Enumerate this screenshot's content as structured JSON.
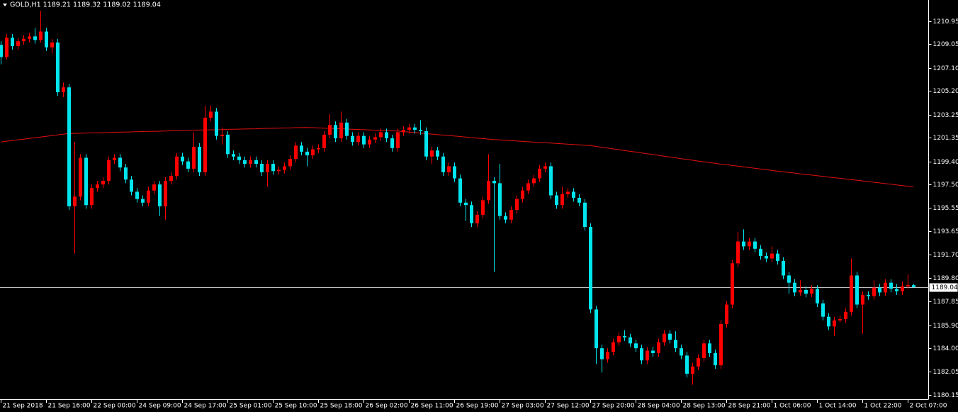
{
  "chart_data": {
    "type": "candlestick",
    "title": "GOLD,H1  1189.21 1189.32 1189.02 1189.04",
    "up_color": "#ff0000",
    "down_color": "#00e5ee",
    "ma_color": "#e01010",
    "last_price": 1189.04,
    "last_price_color": "#c0c0c0",
    "ylim": [
      1179.8,
      1212.7
    ],
    "yticks": [
      {
        "value": 1180.15,
        "label": "1180.15"
      },
      1182.05,
      {
        "value": 1184.0,
        "label": "1184.00"
      },
      {
        "value": 1185.9,
        "label": "1185.90"
      },
      1187.85,
      {
        "value": 1189.8,
        "label": "1189.80"
      },
      {
        "value": 1191.7,
        "label": "1191.70"
      },
      1193.65,
      1195.55,
      {
        "value": 1197.5,
        "label": "1197.50"
      },
      {
        "value": 1199.4,
        "label": "1199.40"
      },
      1201.35,
      1203.25,
      {
        "value": 1205.2,
        "label": "1205.20"
      },
      {
        "value": 1207.1,
        "label": "1207.10"
      },
      1209.05,
      1210.95
    ],
    "xticks": [
      "21 Sep 2018",
      "21 Sep 16:00",
      "22 Sep 00:00",
      "24 Sep 09:00",
      "24 Sep 17:00",
      "25 Sep 01:00",
      "25 Sep 10:00",
      "25 Sep 18:00",
      "26 Sep 02:00",
      "26 Sep 11:00",
      "26 Sep 19:00",
      "27 Sep 03:00",
      "27 Sep 12:00",
      "27 Sep 20:00",
      "28 Sep 04:00",
      "28 Sep 13:00",
      "28 Sep 21:00",
      "1 Oct 06:00",
      "1 Oct 14:00",
      "1 Oct 22:00",
      "2 Oct 07:00"
    ],
    "ohlc": [
      [
        1209.0,
        1209.3,
        1207.4,
        1208.0
      ],
      [
        1208.0,
        1209.9,
        1207.8,
        1209.6
      ],
      [
        1209.6,
        1209.9,
        1208.6,
        1208.9
      ],
      [
        1208.9,
        1209.6,
        1208.6,
        1209.3
      ],
      [
        1209.3,
        1209.8,
        1209.0,
        1209.5
      ],
      [
        1209.5,
        1210.0,
        1209.2,
        1209.7
      ],
      [
        1209.7,
        1210.4,
        1209.1,
        1209.4
      ],
      [
        1209.4,
        1211.8,
        1209.2,
        1210.1
      ],
      [
        1210.1,
        1210.4,
        1208.5,
        1208.8
      ],
      [
        1208.8,
        1209.5,
        1208.3,
        1209.2
      ],
      [
        1209.2,
        1209.5,
        1204.8,
        1205.1
      ],
      [
        1205.1,
        1205.9,
        1204.7,
        1205.5
      ],
      [
        1205.5,
        1205.8,
        1195.4,
        1195.7
      ],
      [
        1195.7,
        1201.0,
        1191.8,
        1196.5
      ],
      [
        1196.5,
        1200.0,
        1196.2,
        1199.7
      ],
      [
        1199.7,
        1200.0,
        1195.5,
        1195.8
      ],
      [
        1195.8,
        1197.5,
        1195.5,
        1197.2
      ],
      [
        1197.2,
        1197.8,
        1196.9,
        1197.5
      ],
      [
        1197.5,
        1198.1,
        1197.2,
        1197.8
      ],
      [
        1197.8,
        1199.8,
        1197.5,
        1199.5
      ],
      [
        1199.5,
        1200.0,
        1199.2,
        1199.7
      ],
      [
        1199.7,
        1200.0,
        1198.6,
        1198.9
      ],
      [
        1198.9,
        1199.2,
        1197.6,
        1197.9
      ],
      [
        1197.9,
        1198.2,
        1196.6,
        1196.9
      ],
      [
        1196.9,
        1197.2,
        1196.0,
        1196.3
      ],
      [
        1196.3,
        1196.6,
        1195.7,
        1196.0
      ],
      [
        1196.0,
        1197.3,
        1195.7,
        1197.0
      ],
      [
        1197.0,
        1197.8,
        1196.7,
        1197.5
      ],
      [
        1197.5,
        1197.8,
        1194.9,
        1195.7
      ],
      [
        1195.7,
        1198.1,
        1194.6,
        1197.8
      ],
      [
        1197.8,
        1198.5,
        1197.5,
        1198.2
      ],
      [
        1198.2,
        1200.1,
        1197.9,
        1199.8
      ],
      [
        1199.8,
        1200.1,
        1199.1,
        1199.4
      ],
      [
        1199.4,
        1199.7,
        1198.5,
        1198.8
      ],
      [
        1198.8,
        1201.8,
        1198.5,
        1200.6
      ],
      [
        1200.6,
        1200.9,
        1198.2,
        1198.5
      ],
      [
        1198.5,
        1204.0,
        1198.2,
        1203.0
      ],
      [
        1203.0,
        1204.0,
        1202.7,
        1203.5
      ],
      [
        1203.5,
        1203.8,
        1201.2,
        1201.5
      ],
      [
        1201.5,
        1202.2,
        1200.8,
        1201.6
      ],
      [
        1201.6,
        1201.9,
        1199.7,
        1200.0
      ],
      [
        1200.0,
        1200.3,
        1199.5,
        1199.8
      ],
      [
        1199.8,
        1200.1,
        1199.2,
        1199.5
      ],
      [
        1199.5,
        1199.8,
        1198.9,
        1199.2
      ],
      [
        1199.2,
        1199.8,
        1198.9,
        1199.5
      ],
      [
        1199.5,
        1199.8,
        1198.9,
        1199.2
      ],
      [
        1199.2,
        1199.5,
        1198.2,
        1198.5
      ],
      [
        1198.5,
        1199.5,
        1197.3,
        1199.2
      ],
      [
        1199.2,
        1199.5,
        1198.3,
        1198.6
      ],
      [
        1198.6,
        1199.0,
        1198.3,
        1198.7
      ],
      [
        1198.7,
        1199.3,
        1198.4,
        1199.0
      ],
      [
        1199.0,
        1199.9,
        1198.7,
        1199.6
      ],
      [
        1199.6,
        1201.0,
        1199.3,
        1200.7
      ],
      [
        1200.7,
        1201.0,
        1199.9,
        1200.2
      ],
      [
        1200.2,
        1200.5,
        1199.0,
        1199.9
      ],
      [
        1199.9,
        1200.7,
        1199.6,
        1200.4
      ],
      [
        1200.4,
        1200.8,
        1200.1,
        1200.5
      ],
      [
        1200.5,
        1201.9,
        1200.2,
        1201.6
      ],
      [
        1201.6,
        1203.3,
        1201.3,
        1202.4
      ],
      [
        1202.4,
        1202.7,
        1201.0,
        1201.3
      ],
      [
        1201.3,
        1203.5,
        1201.0,
        1202.6
      ],
      [
        1202.6,
        1202.9,
        1201.2,
        1201.5
      ],
      [
        1201.5,
        1201.8,
        1200.7,
        1201.0
      ],
      [
        1201.0,
        1201.8,
        1200.7,
        1201.5
      ],
      [
        1201.5,
        1201.8,
        1200.5,
        1200.8
      ],
      [
        1200.8,
        1201.5,
        1200.5,
        1201.2
      ],
      [
        1201.2,
        1201.7,
        1200.9,
        1201.4
      ],
      [
        1201.4,
        1202.1,
        1201.1,
        1201.8
      ],
      [
        1201.8,
        1202.1,
        1201.0,
        1201.3
      ],
      [
        1201.3,
        1201.6,
        1200.2,
        1200.5
      ],
      [
        1200.5,
        1202.1,
        1200.2,
        1201.8
      ],
      [
        1201.8,
        1202.3,
        1201.5,
        1202.0
      ],
      [
        1202.0,
        1202.5,
        1201.7,
        1202.2
      ],
      [
        1202.2,
        1202.5,
        1201.7,
        1202.0
      ],
      [
        1202.0,
        1202.8,
        1201.6,
        1201.9
      ],
      [
        1201.9,
        1202.2,
        1199.5,
        1199.8
      ],
      [
        1199.8,
        1200.6,
        1199.2,
        1200.3
      ],
      [
        1200.3,
        1200.6,
        1199.5,
        1199.8
      ],
      [
        1199.8,
        1200.1,
        1198.2,
        1198.5
      ],
      [
        1198.5,
        1199.3,
        1198.2,
        1199.0
      ],
      [
        1199.0,
        1199.3,
        1197.7,
        1198.0
      ],
      [
        1198.0,
        1198.3,
        1195.7,
        1196.0
      ],
      [
        1196.0,
        1196.3,
        1194.5,
        1195.8
      ],
      [
        1195.8,
        1196.1,
        1194.0,
        1194.3
      ],
      [
        1194.3,
        1195.3,
        1194.0,
        1195.0
      ],
      [
        1195.0,
        1196.5,
        1194.7,
        1196.2
      ],
      [
        1196.2,
        1200.0,
        1195.9,
        1197.8
      ],
      [
        1197.8,
        1198.1,
        1190.3,
        1197.6
      ],
      [
        1197.6,
        1199.2,
        1194.6,
        1194.9
      ],
      [
        1194.9,
        1195.2,
        1194.3,
        1194.6
      ],
      [
        1194.6,
        1195.7,
        1194.3,
        1195.4
      ],
      [
        1195.4,
        1196.6,
        1195.1,
        1196.3
      ],
      [
        1196.3,
        1197.3,
        1196.0,
        1197.0
      ],
      [
        1197.0,
        1197.9,
        1196.7,
        1197.6
      ],
      [
        1197.6,
        1198.3,
        1197.3,
        1198.0
      ],
      [
        1198.0,
        1199.1,
        1197.7,
        1198.8
      ],
      [
        1198.8,
        1199.3,
        1198.5,
        1199.0
      ],
      [
        1199.0,
        1199.3,
        1196.3,
        1196.6
      ],
      [
        1196.6,
        1196.9,
        1195.5,
        1195.8
      ],
      [
        1195.8,
        1197.3,
        1195.5,
        1196.7
      ],
      [
        1196.7,
        1197.2,
        1196.4,
        1196.9
      ],
      [
        1196.9,
        1197.2,
        1196.1,
        1196.4
      ],
      [
        1196.4,
        1196.7,
        1195.7,
        1196.0
      ],
      [
        1196.0,
        1196.3,
        1193.7,
        1194.0
      ],
      [
        1194.0,
        1194.3,
        1186.9,
        1187.2
      ],
      [
        1187.2,
        1187.5,
        1182.7,
        1184.0
      ],
      [
        1184.0,
        1184.3,
        1182.0,
        1183.1
      ],
      [
        1183.1,
        1184.0,
        1182.8,
        1183.7
      ],
      [
        1183.7,
        1184.8,
        1183.4,
        1184.5
      ],
      [
        1184.5,
        1185.3,
        1184.2,
        1185.0
      ],
      [
        1185.0,
        1185.5,
        1184.6,
        1184.9
      ],
      [
        1184.9,
        1185.2,
        1184.1,
        1184.4
      ],
      [
        1184.4,
        1184.7,
        1183.7,
        1184.0
      ],
      [
        1184.0,
        1184.3,
        1182.7,
        1183.0
      ],
      [
        1183.0,
        1184.1,
        1182.7,
        1183.8
      ],
      [
        1183.8,
        1184.1,
        1183.3,
        1183.6
      ],
      [
        1183.6,
        1184.8,
        1183.3,
        1184.5
      ],
      [
        1184.5,
        1185.5,
        1184.2,
        1185.2
      ],
      [
        1185.2,
        1185.5,
        1184.4,
        1184.7
      ],
      [
        1184.7,
        1185.4,
        1183.7,
        1184.0
      ],
      [
        1184.0,
        1184.3,
        1183.1,
        1183.4
      ],
      [
        1183.4,
        1183.7,
        1181.6,
        1181.9
      ],
      [
        1181.9,
        1182.8,
        1181.0,
        1182.5
      ],
      [
        1182.5,
        1183.5,
        1182.2,
        1183.2
      ],
      [
        1183.2,
        1184.7,
        1182.9,
        1184.4
      ],
      [
        1184.4,
        1184.7,
        1183.3,
        1183.6
      ],
      [
        1183.6,
        1183.9,
        1182.3,
        1182.6
      ],
      [
        1182.6,
        1186.3,
        1182.3,
        1186.0
      ],
      [
        1186.0,
        1187.9,
        1185.7,
        1187.6
      ],
      [
        1187.6,
        1191.3,
        1187.3,
        1191.0
      ],
      [
        1191.0,
        1193.6,
        1190.7,
        1192.8
      ],
      [
        1192.8,
        1193.8,
        1192.1,
        1192.4
      ],
      [
        1192.4,
        1193.1,
        1192.1,
        1192.8
      ],
      [
        1192.8,
        1193.1,
        1191.9,
        1192.2
      ],
      [
        1192.2,
        1192.5,
        1191.3,
        1191.6
      ],
      [
        1191.6,
        1191.9,
        1191.1,
        1191.4
      ],
      [
        1191.4,
        1192.4,
        1191.1,
        1191.8
      ],
      [
        1191.8,
        1192.1,
        1190.9,
        1191.2
      ],
      [
        1191.2,
        1191.5,
        1189.7,
        1190.0
      ],
      [
        1190.0,
        1190.3,
        1188.5,
        1189.4
      ],
      [
        1189.4,
        1189.7,
        1188.3,
        1188.6
      ],
      [
        1188.6,
        1189.6,
        1188.3,
        1188.8
      ],
      [
        1188.8,
        1189.1,
        1188.2,
        1188.5
      ],
      [
        1188.5,
        1189.2,
        1188.2,
        1188.9
      ],
      [
        1188.9,
        1189.2,
        1187.4,
        1187.7
      ],
      [
        1187.7,
        1188.0,
        1186.3,
        1186.6
      ],
      [
        1186.6,
        1186.9,
        1185.5,
        1185.8
      ],
      [
        1185.8,
        1186.6,
        1185.0,
        1186.3
      ],
      [
        1186.3,
        1186.7,
        1186.1,
        1186.4
      ],
      [
        1186.4,
        1187.3,
        1186.1,
        1187.0
      ],
      [
        1187.0,
        1191.4,
        1186.7,
        1190.0
      ],
      [
        1190.0,
        1190.3,
        1187.3,
        1187.6
      ],
      [
        1187.6,
        1188.7,
        1185.2,
        1188.4
      ],
      [
        1188.4,
        1188.7,
        1188.0,
        1188.3
      ],
      [
        1188.3,
        1189.6,
        1188.0,
        1189.0
      ],
      [
        1189.0,
        1189.3,
        1188.3,
        1188.6
      ],
      [
        1188.6,
        1189.7,
        1188.3,
        1189.4
      ],
      [
        1189.4,
        1189.7,
        1188.6,
        1188.9
      ],
      [
        1188.9,
        1189.3,
        1188.4,
        1188.7
      ],
      [
        1188.7,
        1189.5,
        1188.4,
        1189.1
      ],
      [
        1189.1,
        1190.1,
        1188.9,
        1189.2
      ],
      [
        1189.2,
        1189.3,
        1189.0,
        1189.04
      ]
    ],
    "ma": [
      1201.0,
      1201.06,
      1201.12,
      1201.18,
      1201.23,
      1201.29,
      1201.35,
      1201.41,
      1201.47,
      1201.52,
      1201.58,
      1201.64,
      1201.7,
      1201.71,
      1201.72,
      1201.74,
      1201.75,
      1201.76,
      1201.77,
      1201.78,
      1201.8,
      1201.81,
      1201.82,
      1201.83,
      1201.84,
      1201.86,
      1201.87,
      1201.88,
      1201.89,
      1201.9,
      1201.92,
      1201.93,
      1201.94,
      1201.95,
      1201.96,
      1201.98,
      1201.99,
      1202.0,
      1202.01,
      1202.02,
      1202.04,
      1202.05,
      1202.06,
      1202.07,
      1202.08,
      1202.09,
      1202.11,
      1202.12,
      1202.13,
      1202.14,
      1202.15,
      1202.16,
      1202.18,
      1202.19,
      1202.2,
      1202.18,
      1202.16,
      1202.14,
      1202.12,
      1202.11,
      1202.09,
      1202.07,
      1202.05,
      1202.03,
      1202.01,
      1201.99,
      1201.97,
      1201.96,
      1201.94,
      1201.92,
      1201.9,
      1201.86,
      1201.82,
      1201.78,
      1201.74,
      1201.69,
      1201.65,
      1201.61,
      1201.57,
      1201.53,
      1201.49,
      1201.45,
      1201.41,
      1201.36,
      1201.32,
      1201.28,
      1201.24,
      1201.2,
      1201.17,
      1201.14,
      1201.11,
      1201.08,
      1201.05,
      1201.02,
      1200.99,
      1200.96,
      1200.94,
      1200.91,
      1200.88,
      1200.85,
      1200.82,
      1200.79,
      1200.76,
      1200.73,
      1200.7,
      1200.63,
      1200.57,
      1200.5,
      1200.43,
      1200.37,
      1200.3,
      1200.23,
      1200.17,
      1200.1,
      1200.03,
      1199.97,
      1199.9,
      1199.83,
      1199.77,
      1199.7,
      1199.63,
      1199.57,
      1199.5,
      1199.43,
      1199.37,
      1199.3,
      1199.24,
      1199.18,
      1199.13,
      1199.07,
      1199.01,
      1198.95,
      1198.89,
      1198.83,
      1198.78,
      1198.72,
      1198.66,
      1198.6,
      1198.55,
      1198.49,
      1198.44,
      1198.38,
      1198.33,
      1198.28,
      1198.22,
      1198.17,
      1198.11,
      1198.06,
      1198.01,
      1197.95,
      1197.9,
      1197.85,
      1197.79,
      1197.74,
      1197.68,
      1197.63,
      1197.57,
      1197.52,
      1197.46,
      1197.41,
      1197.35,
      1197.3
    ]
  }
}
